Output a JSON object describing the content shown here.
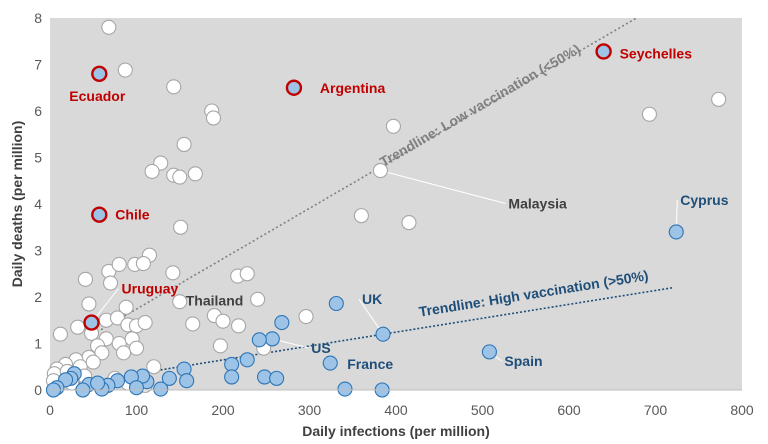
{
  "chart_data": {
    "type": "scatter",
    "title": "",
    "xlabel": "Daily infections (per million)",
    "ylabel": "Daily deaths (per million)",
    "xlim": [
      0,
      800
    ],
    "ylim": [
      0,
      8
    ],
    "x_ticks": [
      "0",
      "100",
      "200",
      "300",
      "400",
      "500",
      "600",
      "700",
      "800"
    ],
    "y_ticks": [
      "0",
      "1",
      "2",
      "3",
      "4",
      "5",
      "6",
      "7",
      "8"
    ],
    "grid": false,
    "plot_background": "#d9d9d9",
    "colors": {
      "low_fill": "#ffffff",
      "low_stroke": "#a6a6a6",
      "high_fill": "#9dc3e6",
      "high_stroke": "#2e75b6",
      "highlight_stroke": "#c00000",
      "low_label": "#404040",
      "high_label": "#1f4e79",
      "highlight_label": "#c00000",
      "low_trend": "#808080",
      "high_trend": "#1f4e79"
    },
    "series": [
      {
        "name": "",
        "group": "low",
        "points": [
          [
            68,
            7.8
          ],
          [
            87,
            6.88
          ],
          [
            143,
            6.52
          ],
          [
            187,
            6.0
          ],
          [
            189,
            5.85
          ],
          [
            155,
            5.28
          ],
          [
            128,
            4.88
          ],
          [
            118,
            4.7
          ],
          [
            143,
            4.62
          ],
          [
            150,
            4.58
          ],
          [
            168,
            4.65
          ],
          [
            151,
            3.5
          ],
          [
            115,
            2.9
          ],
          [
            68,
            2.55
          ],
          [
            98,
            2.7
          ],
          [
            108,
            2.72
          ],
          [
            80,
            2.7
          ],
          [
            41,
            2.38
          ],
          [
            70,
            2.3
          ],
          [
            142,
            2.52
          ],
          [
            217,
            2.45
          ],
          [
            228,
            2.5
          ],
          [
            240,
            1.95
          ],
          [
            150,
            1.9
          ],
          [
            88,
            1.78
          ],
          [
            45,
            1.85
          ],
          [
            65,
            1.5
          ],
          [
            78,
            1.55
          ],
          [
            90,
            1.4
          ],
          [
            100,
            1.38
          ],
          [
            110,
            1.45
          ],
          [
            32,
            1.35
          ],
          [
            12,
            1.2
          ],
          [
            48,
            1.22
          ],
          [
            65,
            1.1
          ],
          [
            80,
            1.0
          ],
          [
            95,
            1.1
          ],
          [
            100,
            0.9
          ],
          [
            85,
            0.8
          ],
          [
            55,
            0.95
          ],
          [
            60,
            0.8
          ],
          [
            45,
            0.7
          ],
          [
            30,
            0.65
          ],
          [
            18,
            0.55
          ],
          [
            8,
            0.45
          ],
          [
            5,
            0.35
          ],
          [
            4,
            0.2
          ],
          [
            20,
            0.4
          ],
          [
            35,
            0.5
          ],
          [
            40,
            0.3
          ],
          [
            25,
            0.15
          ],
          [
            50,
            0.6
          ],
          [
            75,
            0.25
          ],
          [
            90,
            0.15
          ],
          [
            110,
            0.1
          ],
          [
            120,
            0.5
          ],
          [
            165,
            1.42
          ],
          [
            190,
            1.6
          ],
          [
            200,
            1.48
          ],
          [
            218,
            1.38
          ],
          [
            197,
            0.95
          ],
          [
            247,
            0.9
          ],
          [
            296,
            1.58
          ],
          [
            397,
            5.67
          ],
          [
            382,
            4.72
          ],
          [
            360,
            3.75
          ],
          [
            415,
            3.6
          ],
          [
            693,
            5.93
          ],
          [
            773,
            6.25
          ]
        ]
      },
      {
        "name": "",
        "group": "high",
        "points": [
          [
            331,
            1.86
          ],
          [
            385,
            1.2
          ],
          [
            268,
            1.45
          ],
          [
            257,
            1.1
          ],
          [
            242,
            1.08
          ],
          [
            228,
            0.65
          ],
          [
            210,
            0.55
          ],
          [
            210,
            0.28
          ],
          [
            248,
            0.28
          ],
          [
            262,
            0.25
          ],
          [
            155,
            0.45
          ],
          [
            158,
            0.2
          ],
          [
            138,
            0.25
          ],
          [
            128,
            0.02
          ],
          [
            112,
            0.18
          ],
          [
            107,
            0.3
          ],
          [
            94,
            0.28
          ],
          [
            78,
            0.2
          ],
          [
            67,
            0.1
          ],
          [
            60,
            0.02
          ],
          [
            45,
            0.12
          ],
          [
            38,
            0.0
          ],
          [
            28,
            0.35
          ],
          [
            24,
            0.25
          ],
          [
            18,
            0.22
          ],
          [
            8,
            0.05
          ],
          [
            4,
            0.0
          ],
          [
            55,
            0.15
          ],
          [
            100,
            0.05
          ],
          [
            324,
            0.58
          ],
          [
            341,
            0.02
          ],
          [
            384,
            0.0
          ],
          [
            508,
            0.82
          ],
          [
            724,
            3.4
          ]
        ]
      },
      {
        "name": "",
        "group": "highlight",
        "points": [
          [
            57,
            6.8
          ],
          [
            282,
            6.5
          ],
          [
            640,
            7.28
          ],
          [
            57,
            3.77
          ],
          [
            48,
            1.45
          ]
        ]
      }
    ],
    "country_labels": [
      {
        "text": "Ecuador",
        "x": 57,
        "y": 6.8,
        "color": "highlight"
      },
      {
        "text": "Argentina",
        "x": 282,
        "y": 6.5,
        "color": "highlight"
      },
      {
        "text": "Seychelles",
        "x": 640,
        "y": 7.28,
        "color": "highlight"
      },
      {
        "text": "Chile",
        "x": 57,
        "y": 3.77,
        "color": "highlight"
      },
      {
        "text": "Uruguay",
        "x": 48,
        "y": 1.45,
        "color": "highlight"
      },
      {
        "text": "Thailand",
        "x": 150,
        "y": 1.9,
        "color": "low"
      },
      {
        "text": "Malaysia",
        "x": 382,
        "y": 4.72,
        "color": "low"
      },
      {
        "text": "Cyprus",
        "x": 724,
        "y": 3.4,
        "color": "high"
      },
      {
        "text": "UK",
        "x": 385,
        "y": 1.2,
        "color": "high"
      },
      {
        "text": "US",
        "x": 257,
        "y": 1.1,
        "color": "high"
      },
      {
        "text": "France",
        "x": 324,
        "y": 0.58,
        "color": "high"
      },
      {
        "text": "Spain",
        "x": 508,
        "y": 0.82,
        "color": "high"
      }
    ],
    "trendlines": [
      {
        "label": "Trendline: Low vaccination (<50%)",
        "from": [
          50,
          1.2
        ],
        "to": [
          678,
          8.0
        ],
        "color": "low"
      },
      {
        "label": "Trendline: High vaccination (>50%)",
        "from": [
          0,
          0.05
        ],
        "to": [
          720,
          2.2
        ],
        "color": "high"
      }
    ]
  }
}
